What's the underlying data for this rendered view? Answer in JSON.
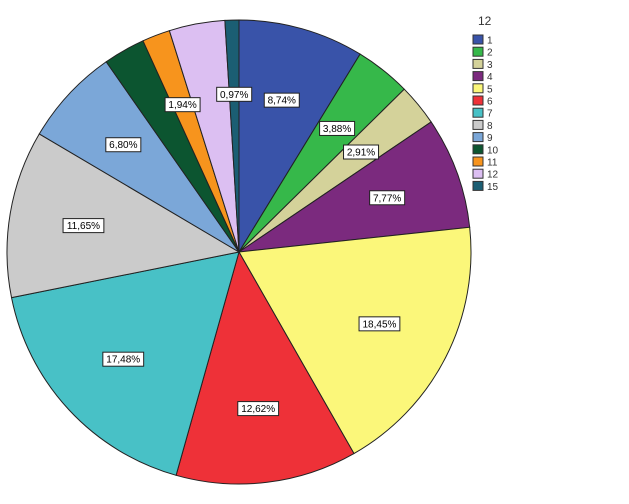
{
  "chart_data": {
    "type": "pie",
    "legend_title": "12",
    "legend_position": "top-right",
    "slices": [
      {
        "name": "1",
        "value": 8.74,
        "label": "8,74%",
        "color": "#3953a9"
      },
      {
        "name": "2",
        "value": 3.88,
        "label": "3,88%",
        "color": "#36b84a"
      },
      {
        "name": "3",
        "value": 2.91,
        "label": "2,91%",
        "color": "#d4d29a"
      },
      {
        "name": "4",
        "value": 7.77,
        "label": "7,77%",
        "color": "#7b2a7e"
      },
      {
        "name": "5",
        "value": 18.45,
        "label": "18,45%",
        "color": "#fbf77a"
      },
      {
        "name": "6",
        "value": 12.62,
        "label": "12,62%",
        "color": "#ee3138"
      },
      {
        "name": "7",
        "value": 17.48,
        "label": "17,48%",
        "color": "#48c1c6"
      },
      {
        "name": "8",
        "value": 11.65,
        "label": "11,65%",
        "color": "#cbcbcb"
      },
      {
        "name": "9",
        "value": 6.8,
        "label": "6,80%",
        "color": "#7ba7d8"
      },
      {
        "name": "10",
        "value": 2.91,
        "label": "",
        "color": "#0c5530"
      },
      {
        "name": "11",
        "value": 1.94,
        "label": "1,94%",
        "color": "#f7941d"
      },
      {
        "name": "12",
        "value": 3.88,
        "label": "",
        "color": "#dcbff2"
      },
      {
        "name": "15",
        "value": 0.97,
        "label": "0,97%",
        "color": "#1b5e73"
      }
    ]
  }
}
